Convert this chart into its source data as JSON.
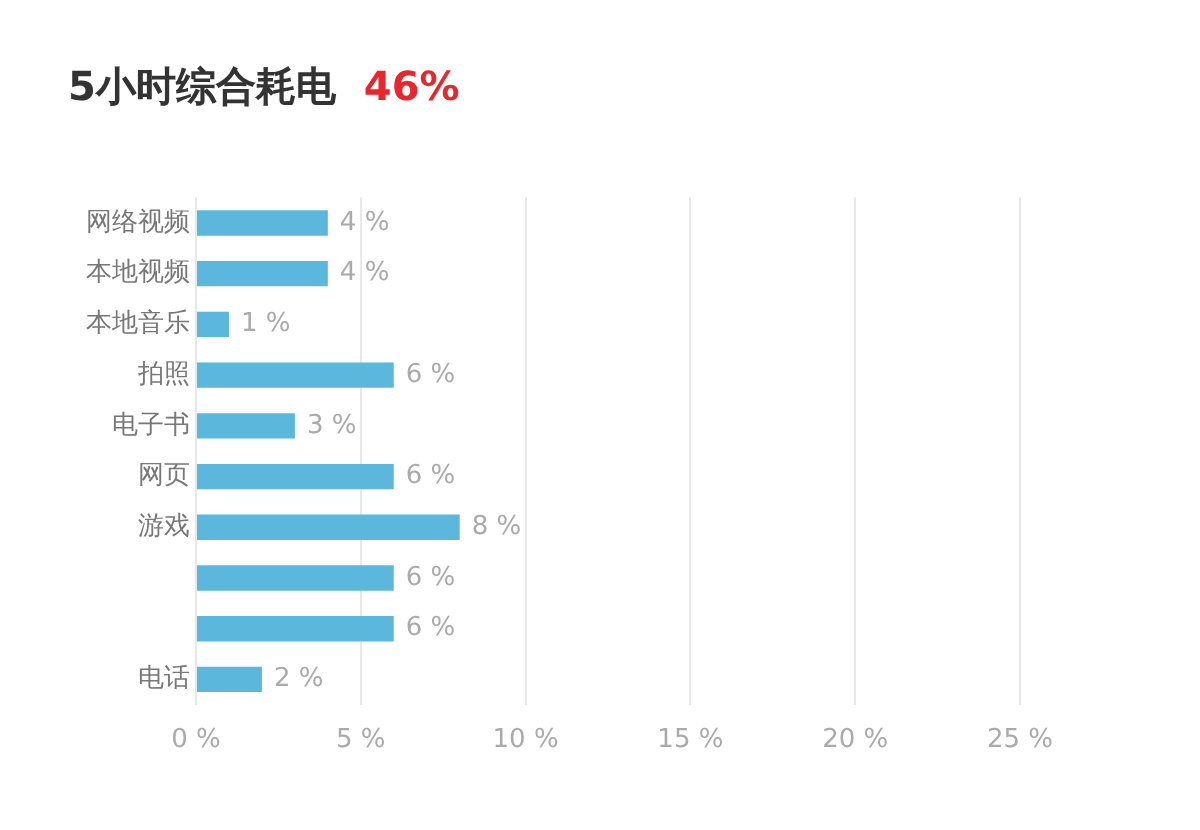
{
  "chart_data": {
    "type": "bar",
    "orientation": "horizontal",
    "title": "5小时综合耗电",
    "subtitle": "46%",
    "categories": [
      "网络视频",
      "本地视频",
      "本地音乐",
      "拍照",
      "电子书",
      "网页",
      "游戏",
      null,
      null,
      "电话"
    ],
    "values": [
      4,
      4,
      1,
      6,
      3,
      6,
      8,
      6,
      6,
      2
    ],
    "value_labels": [
      "4 %",
      "4 %",
      "1 %",
      "6 %",
      "3 %",
      "6 %",
      "8 %",
      "6 %",
      "6 %",
      "2 %"
    ],
    "color": "#5bb8dc",
    "xlim": [
      0,
      25
    ],
    "xticks": [
      {
        "value": 0,
        "label": "0 %"
      },
      {
        "value": 5,
        "label": "5 %"
      },
      {
        "value": 10,
        "label": "10 %"
      },
      {
        "value": 15,
        "label": "15 %"
      },
      {
        "value": 20,
        "label": "20 %"
      },
      {
        "value": 25,
        "label": "25 %"
      }
    ],
    "grid": "x",
    "legend": false
  }
}
